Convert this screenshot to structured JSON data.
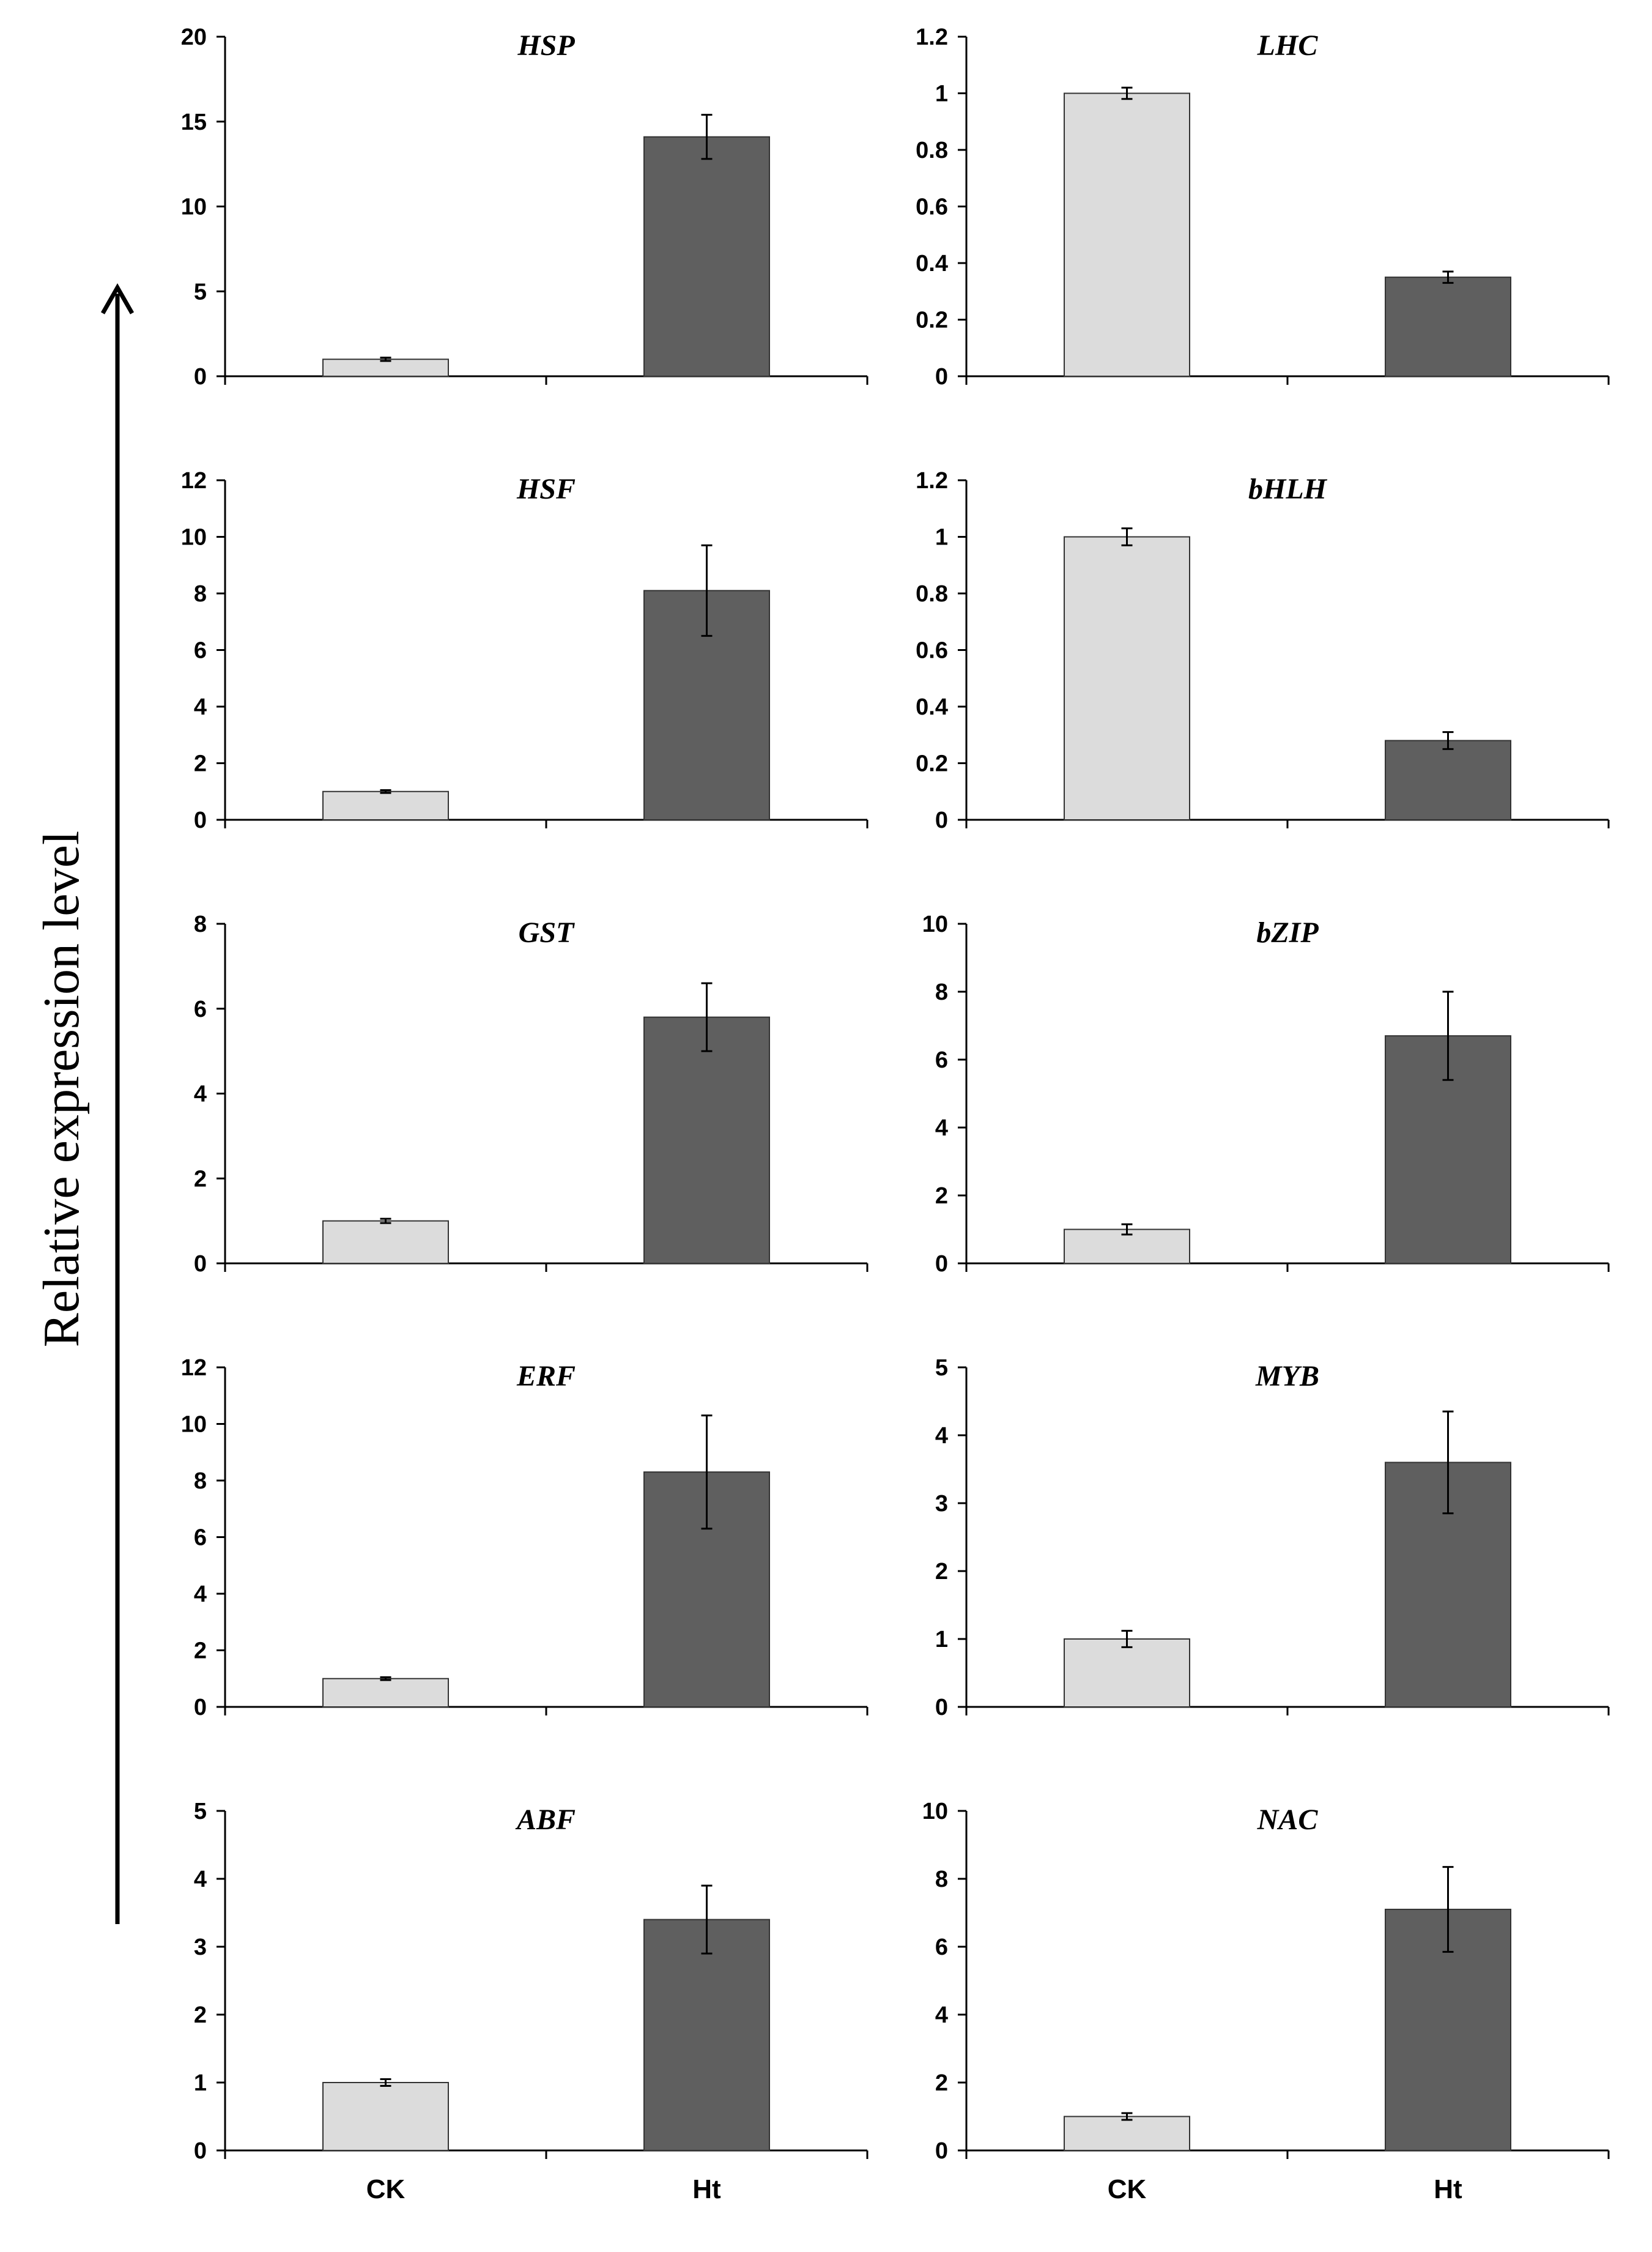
{
  "figure": {
    "ylabel": "Relative expression level",
    "colors": {
      "ck": "#dcdcdc",
      "ht": "#5f5f5f",
      "axis": "#000000",
      "bar_edge": "#333333"
    }
  },
  "chart_data": [
    {
      "type": "bar",
      "title": "HSP",
      "categories": [
        "CK",
        "Ht"
      ],
      "values": [
        1.0,
        14.1
      ],
      "errors": [
        0.1,
        1.3
      ],
      "ylim": [
        0,
        20
      ],
      "yticks": [
        "0",
        "5",
        "10",
        "15",
        "20"
      ],
      "show_xlabels": false
    },
    {
      "type": "bar",
      "title": "LHC",
      "categories": [
        "CK",
        "Ht"
      ],
      "values": [
        1.0,
        0.35
      ],
      "errors": [
        0.02,
        0.02
      ],
      "ylim": [
        0,
        1.2
      ],
      "yticks": [
        "0",
        "0.2",
        "0.4",
        "0.6",
        "0.8",
        "1",
        "1.2"
      ],
      "show_xlabels": false
    },
    {
      "type": "bar",
      "title": "HSF",
      "categories": [
        "CK",
        "Ht"
      ],
      "values": [
        1.0,
        8.1
      ],
      "errors": [
        0.05,
        1.6
      ],
      "ylim": [
        0,
        12
      ],
      "yticks": [
        "0",
        "2",
        "4",
        "6",
        "8",
        "10",
        "12"
      ],
      "show_xlabels": false
    },
    {
      "type": "bar",
      "title": "bHLH",
      "categories": [
        "CK",
        "Ht"
      ],
      "values": [
        1.0,
        0.28
      ],
      "errors": [
        0.03,
        0.03
      ],
      "ylim": [
        0,
        1.2
      ],
      "yticks": [
        "0",
        "0.2",
        "0.4",
        "0.6",
        "0.8",
        "1",
        "1.2"
      ],
      "show_xlabels": false
    },
    {
      "type": "bar",
      "title": "GST",
      "categories": [
        "CK",
        "Ht"
      ],
      "values": [
        1.0,
        5.8
      ],
      "errors": [
        0.05,
        0.8
      ],
      "ylim": [
        0,
        8
      ],
      "yticks": [
        "0",
        "2",
        "4",
        "6",
        "8"
      ],
      "show_xlabels": false
    },
    {
      "type": "bar",
      "title": "bZIP",
      "categories": [
        "CK",
        "Ht"
      ],
      "values": [
        1.0,
        6.7
      ],
      "errors": [
        0.15,
        1.3
      ],
      "ylim": [
        0,
        10
      ],
      "yticks": [
        "0",
        "2",
        "4",
        "6",
        "8",
        "10"
      ],
      "show_xlabels": false
    },
    {
      "type": "bar",
      "title": "ERF",
      "categories": [
        "CK",
        "Ht"
      ],
      "values": [
        1.0,
        8.3
      ],
      "errors": [
        0.05,
        2.0
      ],
      "ylim": [
        0,
        12
      ],
      "yticks": [
        "0",
        "2",
        "4",
        "6",
        "8",
        "10",
        "12"
      ],
      "show_xlabels": false
    },
    {
      "type": "bar",
      "title": "MYB",
      "categories": [
        "CK",
        "Ht"
      ],
      "values": [
        1.0,
        3.6
      ],
      "errors": [
        0.12,
        0.75
      ],
      "ylim": [
        0,
        5
      ],
      "yticks": [
        "0",
        "1",
        "2",
        "3",
        "4",
        "5"
      ],
      "show_xlabels": false
    },
    {
      "type": "bar",
      "title": "ABF",
      "categories": [
        "CK",
        "Ht"
      ],
      "values": [
        1.0,
        3.4
      ],
      "errors": [
        0.05,
        0.5
      ],
      "ylim": [
        0,
        5
      ],
      "yticks": [
        "0",
        "1",
        "2",
        "3",
        "4",
        "5"
      ],
      "show_xlabels": true
    },
    {
      "type": "bar",
      "title": "NAC",
      "categories": [
        "CK",
        "Ht"
      ],
      "values": [
        1.0,
        7.1
      ],
      "errors": [
        0.1,
        1.25
      ],
      "ylim": [
        0,
        10
      ],
      "yticks": [
        "0",
        "2",
        "4",
        "6",
        "8",
        "10"
      ],
      "show_xlabels": true
    }
  ]
}
